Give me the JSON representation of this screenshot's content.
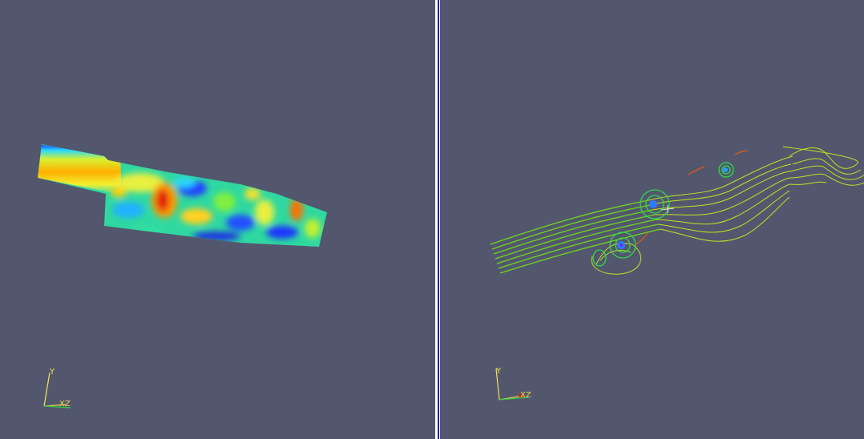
{
  "views": {
    "left": {
      "representation": "surface",
      "colormap": "jet",
      "focused": false
    },
    "right": {
      "representation": "streamlines",
      "colormap": "jet",
      "focused": true
    }
  },
  "orientation_axes": {
    "y_label": "Y",
    "xz_label": "XZ",
    "y_color": "#f2e44b",
    "x_color": "#e8d64a",
    "z_color": "#2fc94d"
  },
  "colors": {
    "background": "#52576e",
    "divider": "#ffffff",
    "active_view_border": "#1c22c8"
  }
}
